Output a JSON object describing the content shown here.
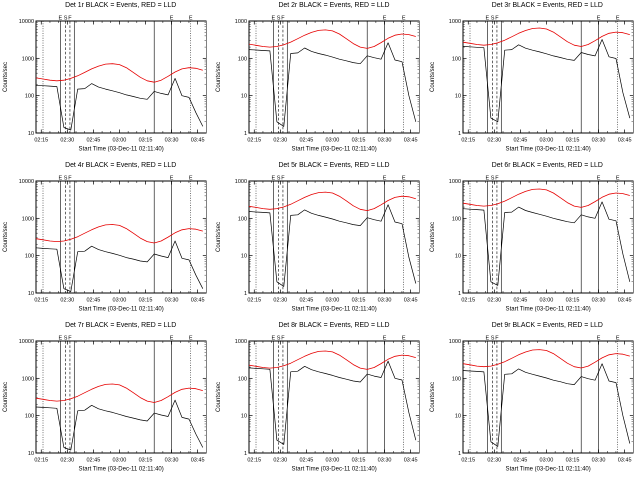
{
  "figure": {
    "background": "#ffffff",
    "description": "3x3 grid of detector count-rate time series panels"
  },
  "chart_data": {
    "type": "line",
    "grid": false,
    "legend_note": "BLACK = Events, RED = LLD",
    "xlabel": "Start Time (03-Dec-11 02:11:40)",
    "ylabel": "Counts/sec",
    "colors": {
      "events": "#000000",
      "lld": "#e60000"
    },
    "x_range": [
      132,
      230
    ],
    "x_tick_minutes": [
      135,
      150,
      165,
      180,
      195,
      210,
      225
    ],
    "x_tick_labels": [
      "02:15",
      "02:30",
      "02:45",
      "03:00",
      "03:15",
      "03:30",
      "03:45"
    ],
    "x_minutes": [
      132,
      136,
      140,
      144,
      148,
      152,
      156,
      160,
      164,
      168,
      172,
      176,
      180,
      184,
      188,
      192,
      196,
      200,
      204,
      208,
      212,
      216,
      220,
      224,
      228
    ],
    "event_lines": [
      {
        "minute": 136,
        "style": "dotted",
        "label": ""
      },
      {
        "minute": 146,
        "style": "solid",
        "label": "E"
      },
      {
        "minute": 149,
        "style": "dashed",
        "label": "S"
      },
      {
        "minute": 151.5,
        "style": "dashed",
        "label": "F"
      },
      {
        "minute": 154,
        "style": "solid",
        "label": ""
      },
      {
        "minute": 200,
        "style": "solid",
        "label": ""
      },
      {
        "minute": 210,
        "style": "solid",
        "label": "E"
      },
      {
        "minute": 221,
        "style": "dotted",
        "label": "E"
      }
    ],
    "panels": [
      {
        "id": "det-1r",
        "title": "Det 1r BLACK = Events, RED = LLD",
        "ylim": [
          10,
          10000
        ],
        "y_ticks": [
          10,
          100,
          1000,
          10000
        ],
        "lld": [
          300,
          280,
          260,
          250,
          260,
          290,
          340,
          420,
          520,
          620,
          700,
          720,
          680,
          560,
          420,
          310,
          250,
          230,
          260,
          330,
          430,
          520,
          560,
          540,
          480
        ],
        "events": [
          190,
          185,
          180,
          175,
          14,
          12,
          150,
          155,
          210,
          170,
          150,
          135,
          120,
          105,
          95,
          85,
          80,
          130,
          115,
          105,
          290,
          100,
          90,
          35,
          15
        ]
      },
      {
        "id": "det-2r",
        "title": "Det 2r BLACK = Events, RED = LLD",
        "ylim": [
          1,
          1000
        ],
        "y_ticks": [
          1,
          10,
          100,
          1000
        ],
        "lld": [
          240,
          224,
          208,
          200,
          208,
          232,
          272,
          336,
          416,
          496,
          560,
          576,
          544,
          448,
          336,
          248,
          200,
          184,
          208,
          264,
          344,
          416,
          448,
          432,
          384
        ],
        "events": [
          171,
          167,
          162,
          158,
          2,
          1.5,
          135,
          140,
          189,
          153,
          135,
          122,
          108,
          95,
          86,
          77,
          72,
          117,
          104,
          95,
          261,
          90,
          81,
          10,
          2
        ]
      },
      {
        "id": "det-3r",
        "title": "Det 3r BLACK = Events, RED = LLD",
        "ylim": [
          1,
          1000
        ],
        "y_ticks": [
          1,
          10,
          100,
          1000
        ],
        "lld": [
          270,
          252,
          234,
          225,
          234,
          261,
          306,
          378,
          468,
          558,
          630,
          648,
          612,
          504,
          378,
          279,
          225,
          207,
          234,
          297,
          387,
          468,
          504,
          486,
          432
        ],
        "events": [
          209,
          204,
          198,
          193,
          2.5,
          2,
          165,
          171,
          231,
          187,
          165,
          149,
          132,
          116,
          105,
          94,
          88,
          143,
          127,
          116,
          319,
          110,
          99,
          12,
          2.5
        ]
      },
      {
        "id": "det-4r",
        "title": "Det 4r BLACK = Events, RED = LLD",
        "ylim": [
          10,
          10000
        ],
        "y_ticks": [
          10,
          100,
          1000,
          10000
        ],
        "lld": [
          285,
          266,
          247,
          238,
          247,
          276,
          323,
          399,
          494,
          589,
          665,
          684,
          646,
          532,
          399,
          295,
          238,
          219,
          247,
          314,
          409,
          494,
          532,
          513,
          456
        ],
        "events": [
          162,
          157,
          153,
          149,
          13,
          11,
          128,
          132,
          179,
          145,
          128,
          115,
          102,
          89,
          81,
          72,
          68,
          111,
          98,
          89,
          247,
          85,
          77,
          30,
          13
        ]
      },
      {
        "id": "det-5r",
        "title": "Det 5r BLACK = Events, RED = LLD",
        "ylim": [
          1,
          1000
        ],
        "y_ticks": [
          1,
          10,
          100,
          1000
        ],
        "lld": [
          210,
          196,
          182,
          175,
          182,
          203,
          238,
          294,
          364,
          434,
          490,
          504,
          476,
          392,
          294,
          217,
          175,
          161,
          182,
          231,
          301,
          364,
          392,
          378,
          336
        ],
        "events": [
          152,
          148,
          144,
          140,
          2,
          1.5,
          120,
          124,
          168,
          136,
          120,
          108,
          96,
          84,
          76,
          68,
          64,
          104,
          92,
          84,
          232,
          80,
          72,
          9,
          1.8
        ]
      },
      {
        "id": "det-6r",
        "title": "Det 6r BLACK = Events, RED = LLD",
        "ylim": [
          1,
          1000
        ],
        "y_ticks": [
          1,
          10,
          100,
          1000
        ],
        "lld": [
          255,
          238,
          221,
          213,
          221,
          247,
          289,
          357,
          442,
          527,
          595,
          612,
          578,
          476,
          357,
          264,
          213,
          196,
          221,
          281,
          366,
          442,
          476,
          459,
          408
        ],
        "events": [
          181,
          176,
          171,
          166,
          2,
          1.6,
          143,
          147,
          200,
          162,
          143,
          128,
          114,
          100,
          90,
          81,
          76,
          124,
          109,
          100,
          276,
          95,
          86,
          11,
          2
        ]
      },
      {
        "id": "det-7r",
        "title": "Det 7r BLACK = Events, RED = LLD",
        "ylim": [
          10,
          10000
        ],
        "y_ticks": [
          10,
          100,
          1000,
          10000
        ],
        "lld": [
          294,
          274,
          255,
          245,
          255,
          284,
          333,
          412,
          510,
          608,
          686,
          706,
          666,
          549,
          412,
          304,
          245,
          225,
          255,
          323,
          421,
          510,
          549,
          529,
          470
        ],
        "events": [
          171,
          167,
          162,
          158,
          14,
          12,
          135,
          140,
          189,
          153,
          135,
          122,
          108,
          95,
          86,
          77,
          72,
          117,
          104,
          95,
          261,
          90,
          81,
          32,
          14
        ]
      },
      {
        "id": "det-8r",
        "title": "Det 8r BLACK = Events, RED = LLD",
        "ylim": [
          1,
          1000
        ],
        "y_ticks": [
          1,
          10,
          100,
          1000
        ],
        "lld": [
          225,
          210,
          195,
          188,
          195,
          218,
          255,
          315,
          390,
          465,
          525,
          540,
          510,
          420,
          315,
          233,
          188,
          173,
          195,
          248,
          323,
          390,
          420,
          405,
          360
        ],
        "events": [
          190,
          185,
          180,
          175,
          2.2,
          1.7,
          150,
          155,
          210,
          170,
          150,
          135,
          120,
          105,
          95,
          85,
          80,
          130,
          115,
          105,
          290,
          100,
          90,
          12,
          2.2
        ]
      },
      {
        "id": "det-9r",
        "title": "Det 9r BLACK = Events, RED = LLD",
        "ylim": [
          1,
          1000
        ],
        "y_ticks": [
          1,
          10,
          100,
          1000
        ],
        "lld": [
          246,
          230,
          213,
          205,
          213,
          238,
          279,
          344,
          426,
          508,
          574,
          590,
          558,
          459,
          344,
          254,
          205,
          189,
          213,
          271,
          353,
          426,
          459,
          443,
          394
        ],
        "events": [
          162,
          157,
          153,
          149,
          2,
          1.5,
          128,
          132,
          179,
          145,
          128,
          115,
          102,
          89,
          81,
          72,
          68,
          111,
          98,
          89,
          247,
          85,
          77,
          10,
          1.8
        ]
      }
    ]
  }
}
